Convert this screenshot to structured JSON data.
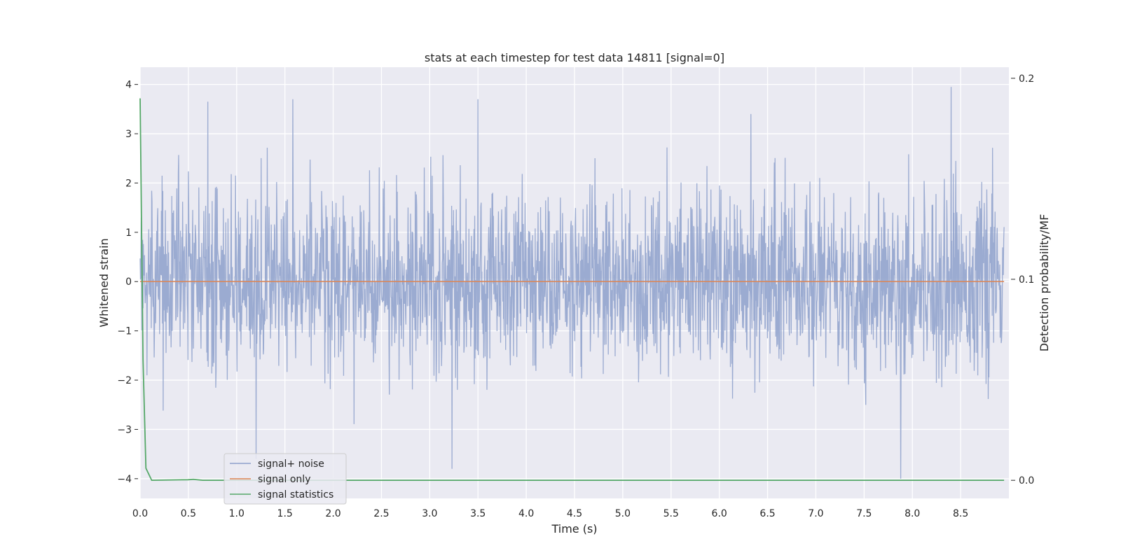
{
  "chart_data": {
    "type": "line",
    "title": "stats at each timestep for test data 14811 [signal=0]",
    "xlabel": "Time (s)",
    "ylabel": "Whitened strain",
    "y2label": "Detection probability/MF",
    "xlim": [
      0,
      9.0
    ],
    "ylim": [
      -4.4,
      4.35
    ],
    "y2lim": [
      -0.009,
      0.2055
    ],
    "xticks": [
      0.0,
      0.5,
      1.0,
      1.5,
      2.0,
      2.5,
      3.0,
      3.5,
      4.0,
      4.5,
      5.0,
      5.5,
      6.0,
      6.5,
      7.0,
      7.5,
      8.0,
      8.5
    ],
    "xtick_labels": [
      "0.0",
      "0.5",
      "1.0",
      "1.5",
      "2.0",
      "2.5",
      "3.0",
      "3.5",
      "4.0",
      "4.5",
      "5.0",
      "5.5",
      "6.0",
      "6.5",
      "7.0",
      "7.5",
      "8.0",
      "8.5"
    ],
    "yticks": [
      -4,
      -3,
      -2,
      -1,
      0,
      1,
      2,
      3,
      4
    ],
    "ytick_labels": [
      "−4",
      "−3",
      "−2",
      "−1",
      "0",
      "1",
      "2",
      "3",
      "4"
    ],
    "y2ticks": [
      0.0,
      0.1,
      0.2
    ],
    "y2tick_labels": [
      "0.0",
      "0.1",
      "0.2"
    ],
    "grid": true,
    "legend_position": "lower-left",
    "series": [
      {
        "name": "signal+ noise",
        "color": "#8da0cb",
        "description": "dense noise between about -2.5 and 2.5 with spikes to ±4",
        "x_range": [
          0,
          8.95
        ],
        "sample_count": 2400,
        "peaks": [
          {
            "x": 0.7,
            "y": 3.65
          },
          {
            "x": 1.58,
            "y": 3.7
          },
          {
            "x": 3.5,
            "y": 3.7
          },
          {
            "x": 8.4,
            "y": 3.95
          },
          {
            "x": 1.2,
            "y": -3.6
          },
          {
            "x": 3.23,
            "y": -3.8
          },
          {
            "x": 7.88,
            "y": -4.0
          }
        ]
      },
      {
        "name": "signal only",
        "color": "#dd8452",
        "x": [
          0,
          8.95
        ],
        "y": [
          0,
          0
        ]
      },
      {
        "name": "signal statistics",
        "color": "#55a868",
        "axis": "right",
        "x": [
          0.0,
          0.03,
          0.06,
          0.12,
          0.5,
          0.55,
          0.65,
          8.95
        ],
        "y": [
          0.19,
          0.06,
          0.006,
          0.0,
          0.0003,
          0.0005,
          0.0,
          0.0
        ]
      }
    ]
  }
}
